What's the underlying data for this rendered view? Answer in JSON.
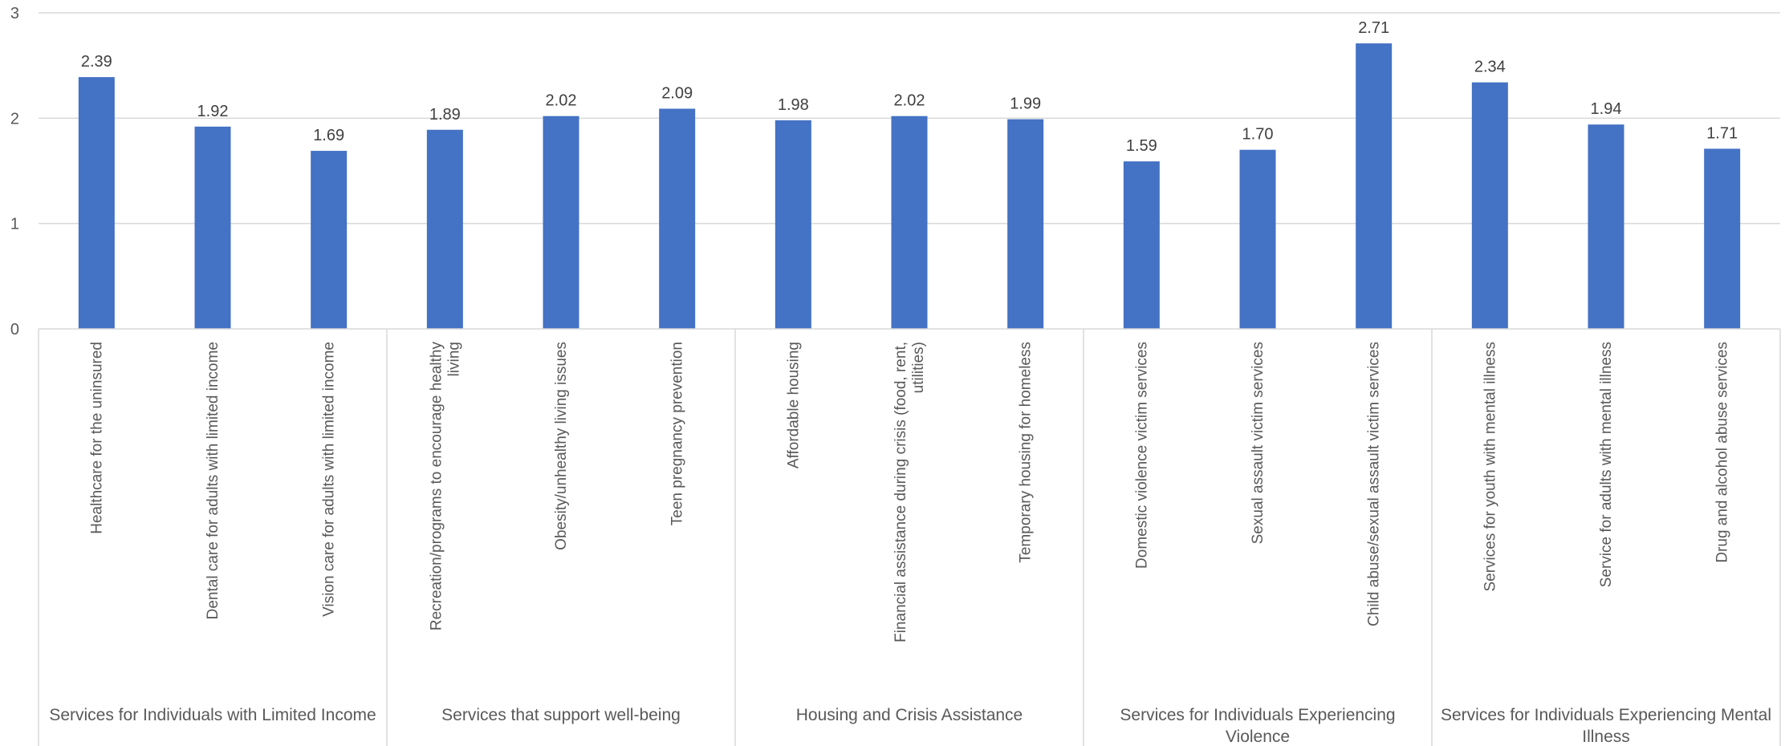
{
  "chart_data": {
    "type": "bar",
    "title": "",
    "xlabel": "",
    "ylabel": "",
    "ylim": [
      0,
      3
    ],
    "yticks": [
      0,
      1,
      2,
      3
    ],
    "grid": true,
    "bar_color": "#4472C4",
    "categories": [
      "Healthcare for the uninsured",
      "Dental care for adults with limited income",
      "Vision care for adults with limited income",
      "Recreation/programs to encourage healthy living",
      "Obesity/unhealthy living issues",
      "Teen pregnancy prevention",
      "Affordable housing",
      "Financial assistance during crisis (food, rent, utilities)",
      "Temporary housing for homeless",
      "Domestic violence victim services",
      "Sexual assault victim services",
      "Child abuse/sexual assault victim services",
      "Services for youth with mental illness",
      "Service for adults with mental illness",
      "Drug and alcohol abuse services"
    ],
    "category_lines": [
      [
        "Healthcare for the uninsured"
      ],
      [
        "Dental care for adults with limited income"
      ],
      [
        "Vision care for adults with limited income"
      ],
      [
        "Recreation/programs to encourage healthy",
        "living"
      ],
      [
        "Obesity/unhealthy living issues"
      ],
      [
        "Teen pregnancy prevention"
      ],
      [
        "Affordable housing"
      ],
      [
        "Financial assistance during crisis (food, rent,",
        "utilities)"
      ],
      [
        "Temporary housing for homeless"
      ],
      [
        "Domestic violence victim services"
      ],
      [
        "Sexual assault victim services"
      ],
      [
        "Child abuse/sexual assault victim services"
      ],
      [
        "Services for youth with mental illness"
      ],
      [
        "Service for adults with mental illness"
      ],
      [
        "Drug and alcohol abuse services"
      ]
    ],
    "values": [
      2.39,
      1.92,
      1.69,
      1.89,
      2.02,
      2.09,
      1.98,
      2.02,
      1.99,
      1.59,
      1.7,
      2.71,
      2.34,
      1.94,
      1.71
    ],
    "data_labels": [
      "2.39",
      "1.92",
      "1.69",
      "1.89",
      "2.02",
      "2.09",
      "1.98",
      "2.02",
      "1.99",
      "1.59",
      "1.70",
      "2.71",
      "2.34",
      "1.94",
      "1.71"
    ],
    "groups": [
      {
        "label_lines": [
          "Services for Individuals with Limited Income"
        ],
        "count": 3
      },
      {
        "label_lines": [
          "Services that support well-being"
        ],
        "count": 3
      },
      {
        "label_lines": [
          "Housing and Crisis Assistance"
        ],
        "count": 3
      },
      {
        "label_lines": [
          "Services for Individuals Experiencing",
          "Violence"
        ],
        "count": 3
      },
      {
        "label_lines": [
          "Services for Individuals Experiencing Mental",
          "Illness"
        ],
        "count": 3
      }
    ]
  }
}
